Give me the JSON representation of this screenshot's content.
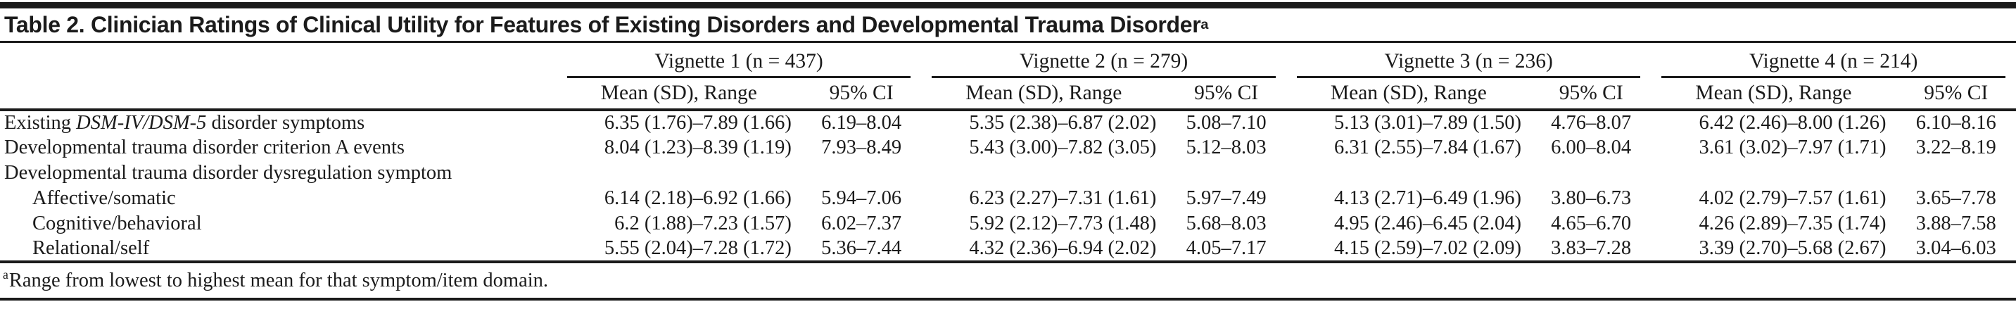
{
  "colors": {
    "text": "#1b1b1b",
    "rule": "#1b1b1b",
    "background": "#ffffff"
  },
  "title": {
    "text": "Table 2. Clinician Ratings of Clinical Utility for Features of Existing Disorders and Developmental Trauma Disorder",
    "superscript": "a"
  },
  "header": {
    "groups": [
      {
        "label": "Vignette 1 (n = 437)"
      },
      {
        "label": "Vignette 2 (n = 279)"
      },
      {
        "label": "Vignette 3 (n = 236)"
      },
      {
        "label": "Vignette 4 (n = 214)"
      }
    ],
    "subcolumns": [
      "Mean (SD), Range",
      "95% CI"
    ]
  },
  "rows": [
    {
      "label_prefix": "Existing ",
      "label_italic": "DSM-IV/DSM-5",
      "label_suffix": " disorder symptoms",
      "cells": [
        "6.35 (1.76)–7.89 (1.66)",
        "6.19–8.04",
        "5.35 (2.38)–6.87 (2.02)",
        "5.08–7.10",
        "5.13 (3.01)–7.89 (1.50)",
        "4.76–8.07",
        "6.42 (2.46)–8.00 (1.26)",
        "6.10–8.16"
      ]
    },
    {
      "label": "Developmental trauma disorder criterion A events",
      "cells": [
        "8.04 (1.23)–8.39 (1.19)",
        "7.93–8.49",
        "5.43 (3.00)–7.82 (3.05)",
        "5.12–8.03",
        "6.31 (2.55)–7.84 (1.67)",
        "6.00–8.04",
        "3.61 (3.02)–7.97 (1.71)",
        "3.22–8.19"
      ]
    },
    {
      "label": "Developmental trauma disorder dysregulation symptom",
      "cells": [
        "",
        "",
        "",
        "",
        "",
        "",
        "",
        ""
      ]
    },
    {
      "label": "Affective/somatic",
      "cells": [
        "6.14 (2.18)–6.92 (1.66)",
        "5.94–7.06",
        "6.23 (2.27)–7.31 (1.61)",
        "5.97–7.49",
        "4.13 (2.71)–6.49 (1.96)",
        "3.80–6.73",
        "4.02 (2.79)–7.57 (1.61)",
        "3.65–7.78"
      ]
    },
    {
      "label": "Cognitive/behavioral",
      "cells": [
        "6.2 (1.88)–7.23 (1.57)",
        "6.02–7.37",
        "5.92 (2.12)–7.73 (1.48)",
        "5.68–8.03",
        "4.95 (2.46)–6.45 (2.04)",
        "4.65–6.70",
        "4.26 (2.89)–7.35 (1.74)",
        "3.88–7.58"
      ]
    },
    {
      "label": "Relational/self",
      "cells": [
        "5.55 (2.04)–7.28 (1.72)",
        "5.36–7.44",
        "4.32 (2.36)–6.94 (2.02)",
        "4.05–7.17",
        "4.15 (2.59)–7.02 (2.09)",
        "3.83–7.28",
        "3.39 (2.70)–5.68 (2.67)",
        "3.04–6.03"
      ]
    }
  ],
  "footnote": {
    "marker": "a",
    "text": "Range from lowest to highest mean for that symptom/item domain."
  }
}
